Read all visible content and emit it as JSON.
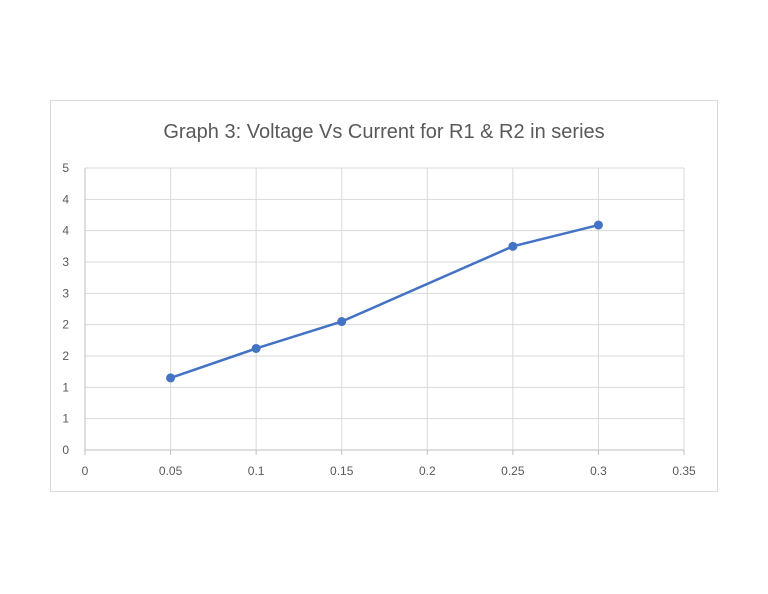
{
  "chart_data": {
    "type": "line",
    "title": "Graph 3: Voltage Vs Current for R1 & R2 in series",
    "xlabel": "",
    "ylabel": "",
    "xlim": [
      0,
      0.35
    ],
    "ylim": [
      0,
      4.5
    ],
    "x_ticks": [
      "0",
      "0.05",
      "0.1",
      "0.15",
      "0.2",
      "0.25",
      "0.3",
      "0.35"
    ],
    "y_ticks": [
      "0",
      "1",
      "1",
      "2",
      "2",
      "3",
      "3",
      "4",
      "4",
      "5"
    ],
    "grid": true,
    "legend": "none",
    "series": [
      {
        "color": "#4472c4",
        "x": [
          0.05,
          0.1,
          0.15,
          0.25,
          0.3
        ],
        "y": [
          1.15,
          1.62,
          2.05,
          3.25,
          3.59
        ]
      }
    ]
  }
}
